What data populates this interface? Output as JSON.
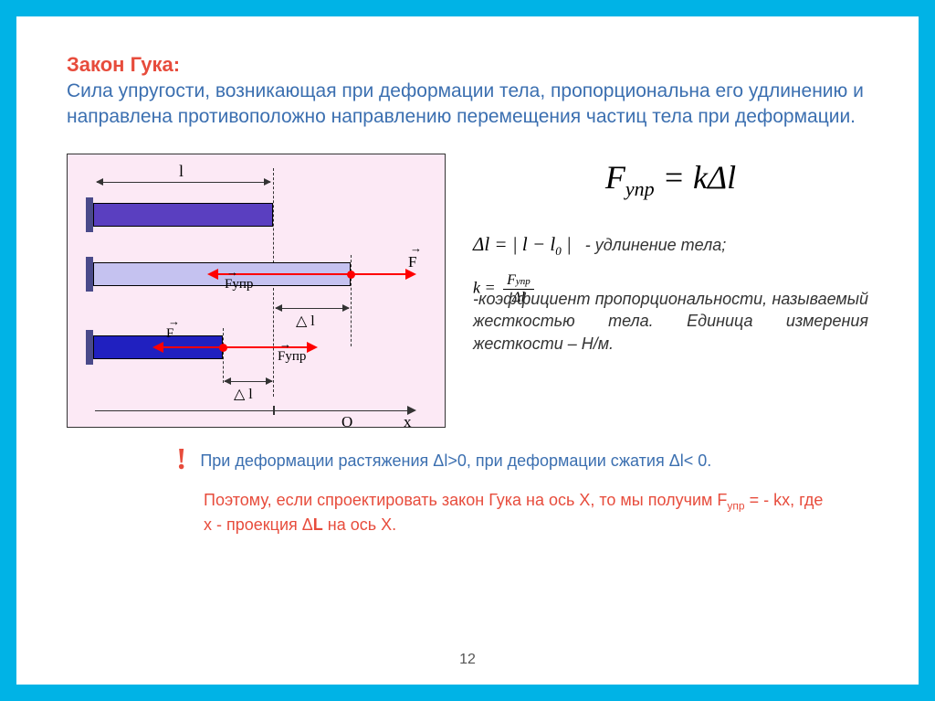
{
  "colors": {
    "frame": "#00b3e6",
    "slide_bg": "#ffffff",
    "title": "#e74c3c",
    "body_blue": "#3b6fb0",
    "accent_red": "#e74c3c",
    "diagram_bg": "#fce9f5",
    "bar_original": "#5a3fc0",
    "bar_stretched": "#c5c2f0",
    "bar_compressed": "#2020c0",
    "force": "#ff0000"
  },
  "title": "Закон Гука:",
  "subtitle": "Сила упругости, возникающая при деформации тела, пропорциональна его удлинению и направлена противоположно направлению перемещения частиц тела при деформации.",
  "diagram": {
    "label_l": "l",
    "label_F": "F",
    "label_Fupr": "Fупр",
    "label_dl": "△ l",
    "label_O": "O",
    "label_x": "x"
  },
  "formula_main_html": "F<span class='sub'>упр</span> = kΔl",
  "elongation_formula_html": "Δl = | l − l<span class='sub'>0</span> |",
  "elongation_text": "- удлинение тела;",
  "k_formula_html": "k = <span class='frac'><span class='num'>F<span class='ss'>упр</span></span><span class='den'>Δl</span></span>",
  "k_text": "-коэффициент пропорциональности, называемый жесткостью тела. Единица измерения жесткости – Н/м.",
  "bang": "!",
  "note": "При деформации растяжения Δl>0, при деформации сжатия Δl< 0.",
  "conclusion_html": "Поэтому, если спроектировать закон Гука на ось Х, то мы получим F<span class='subf'>упр</span> = - kx, где x - проекция Δ<b>L</b> на ось Х.",
  "page_number": "12"
}
